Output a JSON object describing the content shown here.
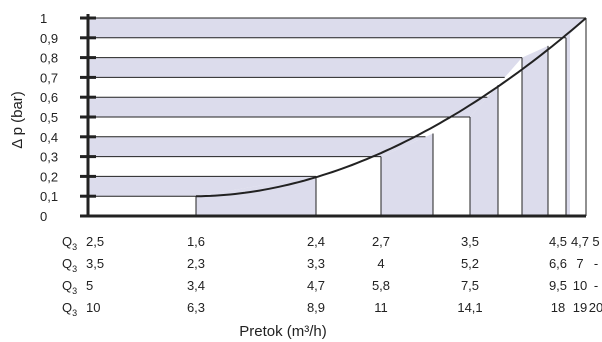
{
  "chart_data": {
    "type": "area",
    "xlabel": "Pretok (m³/h)",
    "ylabel": "Δ p (bar)",
    "ylim": [
      0,
      1
    ],
    "y_ticks": [
      "0",
      "0,1",
      "0,2",
      "0,3",
      "0,4",
      "0,5",
      "0,6",
      "0,7",
      "0,8",
      "0,9",
      "1"
    ],
    "flow_scales": [
      {
        "label": "Q",
        "sub": "3",
        "values": [
          "2,5",
          "1,6",
          "2,4",
          "2,7",
          "3,5",
          "4,5",
          "4,7",
          "5"
        ]
      },
      {
        "label": "Q",
        "sub": "3",
        "values": [
          "3,5",
          "2,3",
          "3,3",
          "4",
          "5,2",
          "6,6",
          "7",
          "-"
        ]
      },
      {
        "label": "Q",
        "sub": "3",
        "values": [
          "5",
          "3,4",
          "4,7",
          "5,8",
          "7,5",
          "9,5",
          "10",
          "-"
        ]
      },
      {
        "label": "Q",
        "sub": "3",
        "values": [
          "10",
          "6,3",
          "8,9",
          "11",
          "14,1",
          "18",
          "19",
          "20"
        ]
      }
    ],
    "curve": {
      "x_ref_scale": 0,
      "points": [
        {
          "x": 1.6,
          "y": 0.1
        },
        {
          "x": 2.4,
          "y": 0.2
        },
        {
          "x": 2.7,
          "y": 0.3
        },
        {
          "x": 3.5,
          "y": 0.5
        },
        {
          "x": 4.5,
          "y": 0.8
        },
        {
          "x": 4.7,
          "y": 0.9
        },
        {
          "x": 5.0,
          "y": 1.0
        }
      ]
    },
    "shaded_bands": [
      [
        0.1,
        0.2
      ],
      [
        0.3,
        0.4
      ],
      [
        0.5,
        0.6
      ],
      [
        0.7,
        0.8
      ],
      [
        0.9,
        1.0
      ]
    ],
    "fill_color": "#dcdcec",
    "line_color": "#222222"
  }
}
